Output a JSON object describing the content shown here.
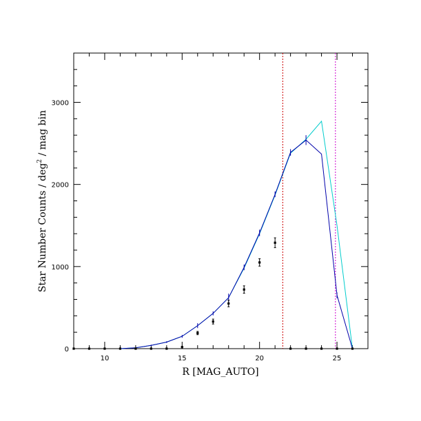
{
  "chart_data": {
    "type": "line",
    "xlabel": "R [MAG_AUTO]",
    "ylabel_main": "Star Number Counts / deg",
    "ylabel_sup": "2",
    "ylabel_tail": " / mag bin",
    "xlim": [
      8,
      27
    ],
    "ylim": [
      0,
      3600
    ],
    "x_major_ticks": [
      10,
      15,
      20,
      25
    ],
    "y_major_ticks": [
      0,
      1000,
      2000,
      3000
    ],
    "x_minor_step": 1,
    "y_minor_step": 200,
    "grid": false,
    "vertical_lines": [
      {
        "x": 21.5,
        "color": "#cc0000",
        "style": "dashed"
      },
      {
        "x": 24.9,
        "color": "#cc00cc",
        "style": "dashed"
      }
    ],
    "series": [
      {
        "color": "#00cccc",
        "style": "line",
        "points": [
          [
            11,
            0
          ],
          [
            12,
            10
          ],
          [
            13,
            40
          ],
          [
            14,
            80
          ],
          [
            15,
            150
          ],
          [
            16,
            280
          ],
          [
            17,
            430
          ],
          [
            18,
            620
          ],
          [
            19,
            980
          ],
          [
            20,
            1400
          ],
          [
            21,
            1870
          ],
          [
            22,
            2380
          ],
          [
            23,
            2550
          ],
          [
            24,
            2770
          ],
          [
            25,
            1500
          ],
          [
            26,
            0
          ]
        ]
      },
      {
        "color": "#0000aa",
        "style": "line_errorbars",
        "points": [
          [
            11,
            0
          ],
          [
            12,
            10
          ],
          [
            13,
            40
          ],
          [
            14,
            80
          ],
          [
            15,
            150
          ],
          [
            16,
            280
          ],
          [
            17,
            430
          ],
          [
            18,
            620
          ],
          [
            19,
            990
          ],
          [
            20,
            1410
          ],
          [
            21,
            1880
          ],
          [
            22,
            2390
          ],
          [
            23,
            2540
          ],
          [
            24,
            2370
          ],
          [
            25,
            650
          ],
          [
            26,
            0
          ]
        ],
        "errors": [
          0,
          3,
          8,
          10,
          18,
          30,
          25,
          50,
          35,
          40,
          35,
          40,
          60,
          0,
          35,
          0
        ]
      },
      {
        "color": "#000000",
        "style": "points_errorbars",
        "points": [
          [
            8,
            0
          ],
          [
            9,
            0
          ],
          [
            10,
            0
          ],
          [
            11,
            0
          ],
          [
            12,
            0
          ],
          [
            13,
            0
          ],
          [
            14,
            0
          ],
          [
            15,
            20
          ],
          [
            16,
            190
          ],
          [
            17,
            330
          ],
          [
            18,
            550
          ],
          [
            19,
            720
          ],
          [
            20,
            1050
          ],
          [
            21,
            1290
          ],
          [
            22,
            0
          ],
          [
            23,
            0
          ],
          [
            24,
            0
          ],
          [
            25,
            0
          ],
          [
            26,
            0
          ]
        ],
        "errors": [
          0,
          0,
          0,
          0,
          0,
          0,
          0,
          8,
          20,
          30,
          40,
          45,
          45,
          60,
          0,
          0,
          0,
          0,
          0
        ]
      }
    ]
  }
}
